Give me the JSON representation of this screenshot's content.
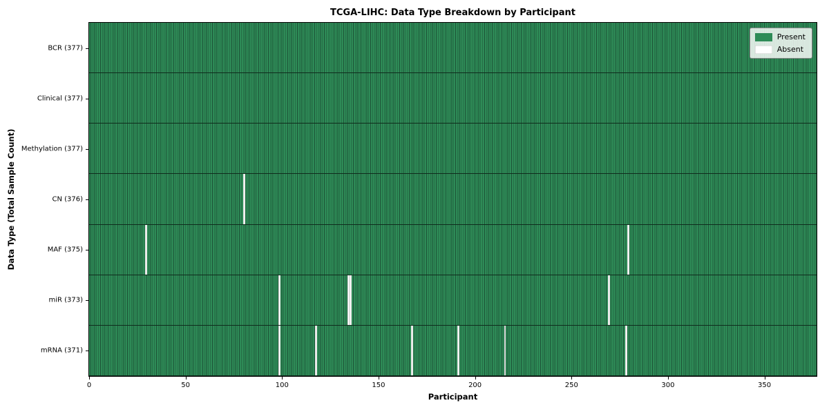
{
  "chart_data": {
    "type": "heatmap",
    "title": "TCGA-LIHC: Data Type Breakdown by Participant",
    "xlabel": "Participant",
    "ylabel": "Data Type (Total Sample Count)",
    "x_ticks": [
      0,
      50,
      100,
      150,
      200,
      250,
      300,
      350
    ],
    "x_range": [
      0,
      377
    ],
    "n_participants": 377,
    "grid": false,
    "legend_position": "upper right",
    "legend": [
      {
        "label": "Present",
        "color": "#2e8b57"
      },
      {
        "label": "Absent",
        "color": "#ffffff"
      }
    ],
    "colors": {
      "present": "#2e8b57",
      "absent": "#ffffff",
      "cell_edge": "#1c5236",
      "row_separator": "#0f2b1c",
      "figure_background": "#ffffff"
    },
    "rows": [
      {
        "data_type": "BCR",
        "label": "BCR (377)",
        "present_count": 377,
        "absent_count": 0,
        "absent_participants": []
      },
      {
        "data_type": "Clinical",
        "label": "Clinical (377)",
        "present_count": 377,
        "absent_count": 0,
        "absent_participants": []
      },
      {
        "data_type": "Methylation",
        "label": "Methylation (377)",
        "present_count": 377,
        "absent_count": 0,
        "absent_participants": []
      },
      {
        "data_type": "CN",
        "label": "CN (376)",
        "present_count": 376,
        "absent_count": 1,
        "absent_participants": [
          80
        ]
      },
      {
        "data_type": "MAF",
        "label": "MAF (375)",
        "present_count": 375,
        "absent_count": 2,
        "absent_participants": [
          29,
          279
        ]
      },
      {
        "data_type": "miR",
        "label": "miR (373)",
        "present_count": 373,
        "absent_count": 4,
        "absent_participants": [
          98,
          134,
          135,
          269
        ]
      },
      {
        "data_type": "mRNA",
        "label": "mRNA (371)",
        "present_count": 371,
        "absent_count": 6,
        "absent_participants": [
          98,
          117,
          167,
          191,
          215,
          278
        ]
      }
    ]
  }
}
